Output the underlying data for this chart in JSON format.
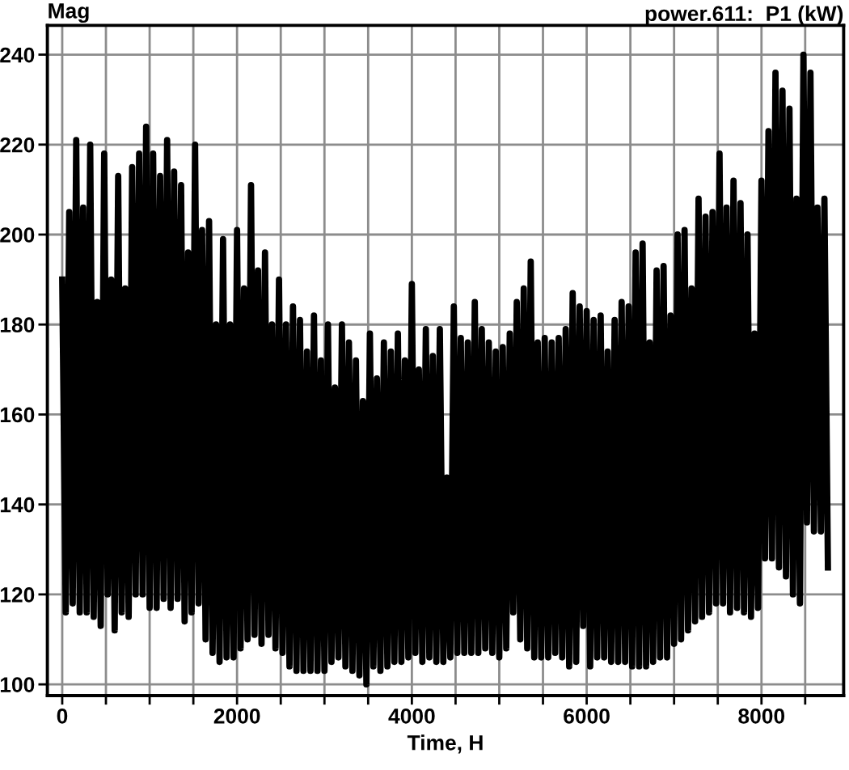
{
  "chart_data": {
    "type": "line",
    "title": "power.611:  P1 (kW)",
    "ylabel": "Mag",
    "xlabel": "Time, H",
    "color": "#000000",
    "line_style": "solid",
    "grid": true,
    "xlim": [
      -170,
      8940
    ],
    "ylim": [
      97.5,
      246.5
    ],
    "xticks": [
      0,
      {
        "value": 500,
        "label": null
      },
      {
        "value": 1000,
        "label": null
      },
      {
        "value": 1500,
        "label": null
      },
      2000,
      {
        "value": 2500,
        "label": null
      },
      {
        "value": 3000,
        "label": null
      },
      {
        "value": 3500,
        "label": null
      },
      4000,
      {
        "value": 4500,
        "label": null
      },
      {
        "value": 5000,
        "label": null
      },
      {
        "value": 5500,
        "label": null
      },
      6000,
      {
        "value": 6500,
        "label": null
      },
      {
        "value": 7000,
        "label": null
      },
      {
        "value": 7500,
        "label": null
      },
      8000,
      {
        "value": 8500,
        "label": null
      }
    ],
    "yticks": [
      100,
      120,
      140,
      160,
      180,
      200,
      220,
      240
    ],
    "x": [
      0,
      40,
      80,
      120,
      160,
      200,
      240,
      280,
      320,
      360,
      400,
      440,
      480,
      520,
      560,
      600,
      640,
      680,
      720,
      760,
      800,
      840,
      880,
      920,
      960,
      1000,
      1040,
      1080,
      1120,
      1160,
      1200,
      1240,
      1280,
      1320,
      1360,
      1400,
      1440,
      1480,
      1520,
      1560,
      1600,
      1640,
      1680,
      1720,
      1760,
      1800,
      1840,
      1880,
      1920,
      1960,
      2000,
      2040,
      2080,
      2120,
      2160,
      2200,
      2240,
      2280,
      2320,
      2360,
      2400,
      2440,
      2480,
      2520,
      2560,
      2600,
      2640,
      2680,
      2720,
      2760,
      2800,
      2840,
      2880,
      2920,
      2960,
      3000,
      3040,
      3080,
      3120,
      3160,
      3200,
      3240,
      3280,
      3320,
      3360,
      3400,
      3440,
      3480,
      3520,
      3560,
      3600,
      3640,
      3680,
      3720,
      3760,
      3800,
      3840,
      3880,
      3920,
      3960,
      4000,
      4040,
      4080,
      4120,
      4160,
      4200,
      4240,
      4280,
      4320,
      4360,
      4400,
      4440,
      4480,
      4520,
      4560,
      4600,
      4640,
      4680,
      4720,
      4760,
      4800,
      4840,
      4880,
      4920,
      4960,
      5000,
      5040,
      5080,
      5120,
      5160,
      5200,
      5240,
      5280,
      5320,
      5360,
      5400,
      5440,
      5480,
      5520,
      5560,
      5600,
      5640,
      5680,
      5720,
      5760,
      5800,
      5840,
      5880,
      5920,
      5960,
      6000,
      6040,
      6080,
      6120,
      6160,
      6200,
      6240,
      6280,
      6320,
      6360,
      6400,
      6440,
      6480,
      6520,
      6560,
      6600,
      6640,
      6680,
      6720,
      6760,
      6800,
      6840,
      6880,
      6920,
      6960,
      7000,
      7040,
      7080,
      7120,
      7160,
      7200,
      7240,
      7280,
      7320,
      7360,
      7400,
      7440,
      7480,
      7520,
      7560,
      7600,
      7640,
      7680,
      7720,
      7760,
      7800,
      7840,
      7880,
      7920,
      7960,
      8000,
      8040,
      8080,
      8120,
      8160,
      8200,
      8240,
      8280,
      8320,
      8360,
      8400,
      8440,
      8480,
      8520,
      8560,
      8600,
      8640,
      8680,
      8720,
      8760
    ],
    "values": [
      190,
      116,
      205,
      118,
      221,
      116,
      206,
      116,
      220,
      115,
      185,
      113,
      218,
      120,
      190,
      112,
      213,
      116,
      188,
      115,
      215,
      120,
      218,
      120,
      224,
      117,
      218,
      117,
      213,
      119,
      221,
      117,
      214,
      119,
      211,
      114,
      196,
      116,
      220,
      118,
      201,
      110,
      203,
      107,
      180,
      105,
      199,
      106,
      180,
      106,
      201,
      108,
      188,
      110,
      211,
      111,
      192,
      109,
      196,
      111,
      180,
      108,
      190,
      107,
      180,
      104,
      184,
      103,
      181,
      103,
      174,
      103,
      182,
      103,
      172,
      103,
      180,
      105,
      166,
      106,
      180,
      104,
      176,
      103,
      172,
      102,
      163,
      100,
      178,
      104,
      168,
      103,
      176,
      104,
      174,
      105,
      178,
      105,
      172,
      106,
      189,
      107,
      170,
      105,
      179,
      106,
      173,
      105,
      179,
      105,
      146,
      106,
      184,
      107,
      177,
      107,
      176,
      107,
      185,
      107,
      179,
      108,
      176,
      107,
      174,
      106,
      175,
      108,
      178,
      116,
      185,
      110,
      188,
      108,
      194,
      106,
      176,
      106,
      177,
      106,
      176,
      107,
      177,
      106,
      179,
      104,
      187,
      105,
      184,
      113,
      183,
      104,
      181,
      106,
      182,
      106,
      174,
      105,
      181,
      105,
      185,
      105,
      184,
      104,
      196,
      104,
      198,
      104,
      176,
      105,
      192,
      106,
      193,
      106,
      182,
      109,
      200,
      110,
      201,
      112,
      188,
      114,
      208,
      115,
      204,
      116,
      205,
      118,
      218,
      118,
      206,
      116,
      212,
      117,
      207,
      116,
      200,
      115,
      178,
      117,
      212,
      128,
      223,
      128,
      236,
      126,
      232,
      124,
      228,
      120,
      208,
      118,
      240,
      136,
      236,
      134,
      206,
      134,
      208,
      126
    ]
  }
}
